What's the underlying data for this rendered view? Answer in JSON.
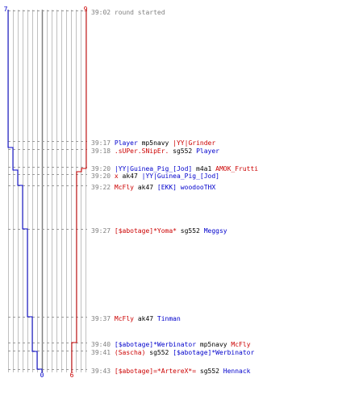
{
  "score": {
    "blue_start": "7",
    "red_start": "9",
    "blue_end": "0",
    "red_end": "6"
  },
  "colors": {
    "blue": "#0000cc",
    "red": "#cc0000",
    "time": "#808080",
    "text": "#000000",
    "grid": "#c0c0c0"
  },
  "events": [
    {
      "time": "39:02",
      "parts": [
        {
          "t": "round started",
          "c": "time"
        }
      ]
    },
    {
      "time": "39:17",
      "parts": [
        {
          "t": "Player",
          "c": "blue"
        },
        {
          "t": " mp5navy ",
          "c": "text"
        },
        {
          "t": "|YY|Grinder",
          "c": "red"
        }
      ]
    },
    {
      "time": "39:18",
      "parts": [
        {
          "t": ".sUPer.SNipEr.",
          "c": "red"
        },
        {
          "t": " sg552 ",
          "c": "text"
        },
        {
          "t": "Player",
          "c": "blue"
        }
      ]
    },
    {
      "time": "39:20",
      "parts": [
        {
          "t": "|YY|Guinea_Pig_[Jod]",
          "c": "blue"
        },
        {
          "t": " m4a1 ",
          "c": "text"
        },
        {
          "t": "AMOK_Frutti",
          "c": "red"
        }
      ]
    },
    {
      "time": "39:20",
      "parts": [
        {
          "t": "x",
          "c": "red"
        },
        {
          "t": " ak47 ",
          "c": "text"
        },
        {
          "t": "|YY|Guinea_Pig_[Jod]",
          "c": "blue"
        }
      ]
    },
    {
      "time": "39:22",
      "parts": [
        {
          "t": "McFly",
          "c": "red"
        },
        {
          "t": " ak47 ",
          "c": "text"
        },
        {
          "t": "[EKK] woodooTHX",
          "c": "blue"
        }
      ]
    },
    {
      "time": "39:27",
      "parts": [
        {
          "t": "[$abotage]*Yoma*",
          "c": "red"
        },
        {
          "t": " sg552 ",
          "c": "text"
        },
        {
          "t": "Meggsy",
          "c": "blue"
        }
      ]
    },
    {
      "time": "39:37",
      "parts": [
        {
          "t": "McFly",
          "c": "red"
        },
        {
          "t": " ak47 ",
          "c": "text"
        },
        {
          "t": "Tinman",
          "c": "blue"
        }
      ]
    },
    {
      "time": "39:40",
      "parts": [
        {
          "t": "[$abotage]*Werbinator",
          "c": "blue"
        },
        {
          "t": " mp5navy ",
          "c": "text"
        },
        {
          "t": "McFly",
          "c": "red"
        }
      ]
    },
    {
      "time": "39:41",
      "parts": [
        {
          "t": "(Sascha)",
          "c": "red"
        },
        {
          "t": " sg552 ",
          "c": "text"
        },
        {
          "t": "[$abotage]*Werbinator",
          "c": "blue"
        }
      ]
    },
    {
      "time": "39:43",
      "parts": [
        {
          "t": "[$abotage]=*ArtereX*=",
          "c": "red"
        },
        {
          "t": " sg552 ",
          "c": "text"
        },
        {
          "t": "Hennack",
          "c": "blue"
        }
      ]
    }
  ]
}
